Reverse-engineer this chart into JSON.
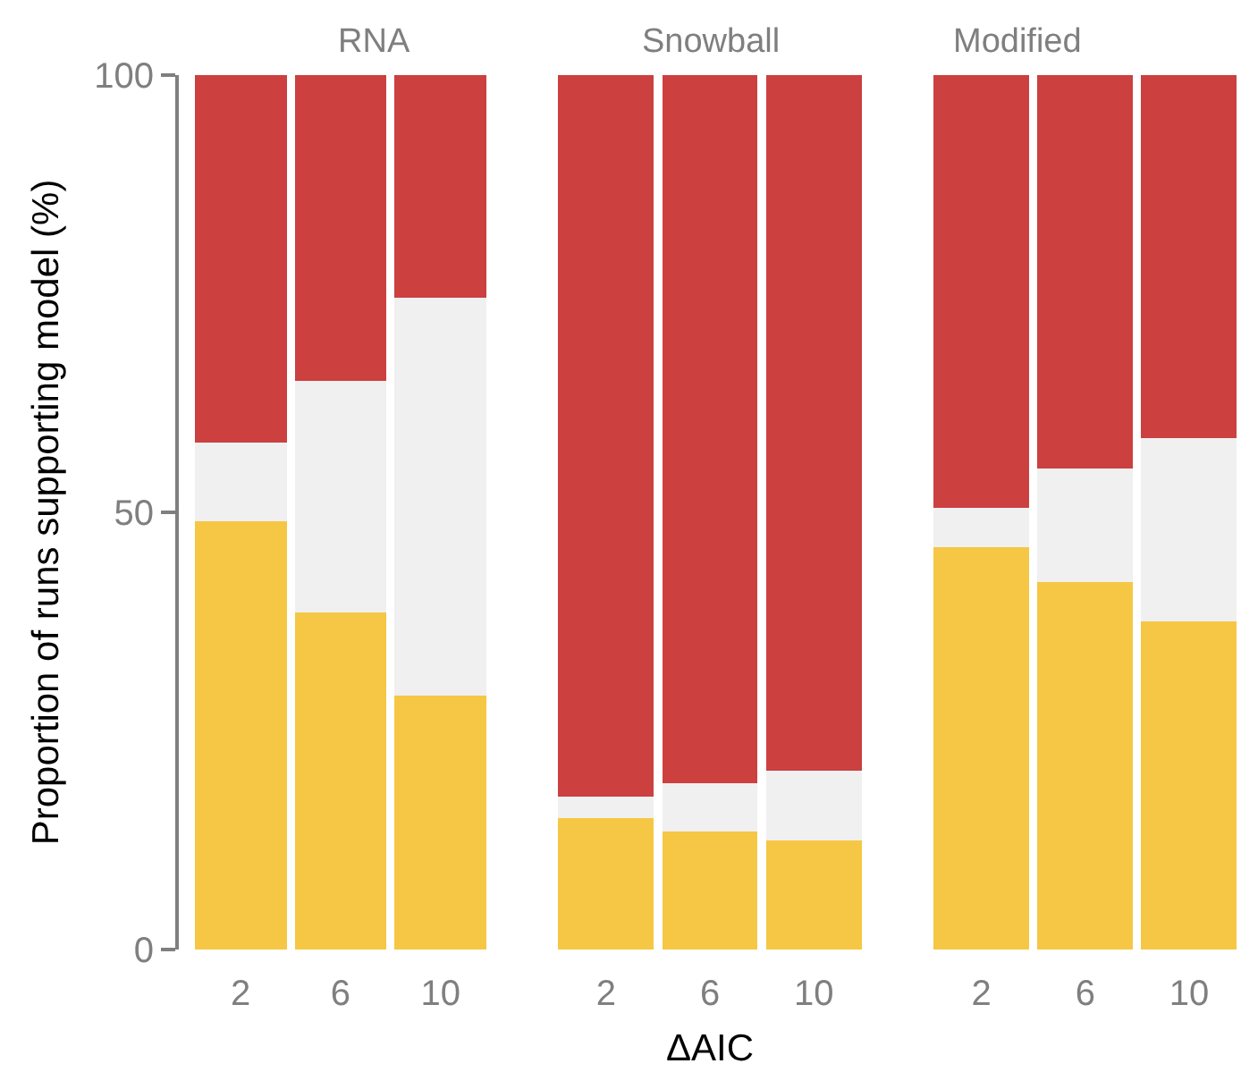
{
  "chart_data": [
    {
      "type": "bar",
      "title": "RNA",
      "ylabel": "Proportion of runs supporting model (%)",
      "categories": [
        "2",
        "6",
        "10"
      ],
      "stacked": true,
      "ylim": [
        0,
        100
      ],
      "yticks": [
        0,
        50,
        100
      ],
      "series": [
        {
          "color": "#f6c744",
          "values": [
            49,
            38.5,
            29
          ]
        },
        {
          "color": "#f0f0f0",
          "values": [
            9,
            26.5,
            45.5
          ]
        },
        {
          "color": "#cc4040",
          "values": [
            42,
            35,
            25.5
          ]
        }
      ]
    },
    {
      "type": "bar",
      "title": "Snowball",
      "xlabel": "ΔAIC",
      "categories": [
        "2",
        "6",
        "10"
      ],
      "stacked": true,
      "ylim": [
        0,
        100
      ],
      "yticks": [
        0,
        50,
        100
      ],
      "tick_labels": "x",
      "series": [
        {
          "color": "#f6c744",
          "values": [
            15,
            13.5,
            12.5
          ]
        },
        {
          "color": "#f0f0f0",
          "values": [
            2.5,
            5.5,
            8
          ]
        },
        {
          "color": "#cc4040",
          "values": [
            82.5,
            81,
            79.5
          ]
        }
      ]
    },
    {
      "type": "bar",
      "title": "Modified",
      "categories": [
        "2",
        "6",
        "10"
      ],
      "stacked": true,
      "ylim": [
        0,
        100
      ],
      "yticks": [
        0,
        50,
        100
      ],
      "tick_labels": "x",
      "series": [
        {
          "color": "#f6c744",
          "values": [
            46,
            42,
            37.5
          ]
        },
        {
          "color": "#f0f0f0",
          "values": [
            4.5,
            13,
            21
          ]
        },
        {
          "color": "#cc4040",
          "values": [
            49.5,
            45,
            41.5
          ]
        }
      ]
    }
  ]
}
